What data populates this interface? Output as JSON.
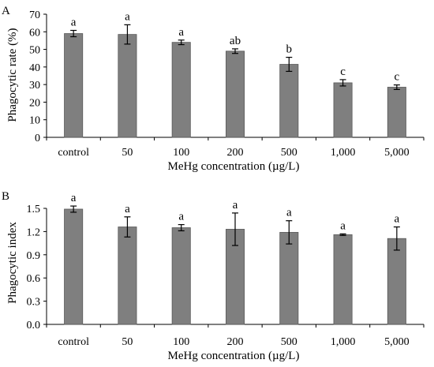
{
  "colors": {
    "bar": "#7f7f7f",
    "bar_edge": "#595959",
    "axis": "#000000"
  },
  "chart_data": [
    {
      "panel_label": "A",
      "type": "bar",
      "xlabel": "MeHg concentration (µg/L)",
      "ylabel": "Phagocytic rate (%)",
      "ylim": [
        0,
        70
      ],
      "yticks": [
        "0",
        "10",
        "20",
        "30",
        "40",
        "50",
        "60",
        "70"
      ],
      "ytick_values": [
        0,
        10,
        20,
        30,
        40,
        50,
        60,
        70
      ],
      "categories": [
        "control",
        "50",
        "100",
        "200",
        "500",
        "1,000",
        "5,000"
      ],
      "values": [
        59,
        58.5,
        54,
        49,
        41.5,
        31,
        28.5
      ],
      "errors": [
        1.8,
        5.5,
        1.3,
        1.3,
        4,
        1.8,
        1.3
      ],
      "letters": [
        "a",
        "a",
        "a",
        "ab",
        "b",
        "c",
        "c"
      ],
      "grid": false
    },
    {
      "panel_label": "B",
      "type": "bar",
      "xlabel": "MeHg concentration (µg/L)",
      "ylabel": "Phagocytic index",
      "ylim": [
        0,
        1.5
      ],
      "yticks": [
        "0.0",
        "0.3",
        "0.6",
        "0.9",
        "1.2",
        "1.5"
      ],
      "ytick_values": [
        0,
        0.3,
        0.6,
        0.9,
        1.2,
        1.5
      ],
      "categories": [
        "control",
        "50",
        "100",
        "200",
        "500",
        "1,000",
        "5,000"
      ],
      "values": [
        1.49,
        1.26,
        1.25,
        1.23,
        1.19,
        1.16,
        1.11
      ],
      "errors": [
        0.04,
        0.13,
        0.04,
        0.21,
        0.15,
        0.01,
        0.15
      ],
      "letters": [
        "a",
        "a",
        "a",
        "a",
        "a",
        "a",
        "a"
      ],
      "grid": false
    }
  ]
}
